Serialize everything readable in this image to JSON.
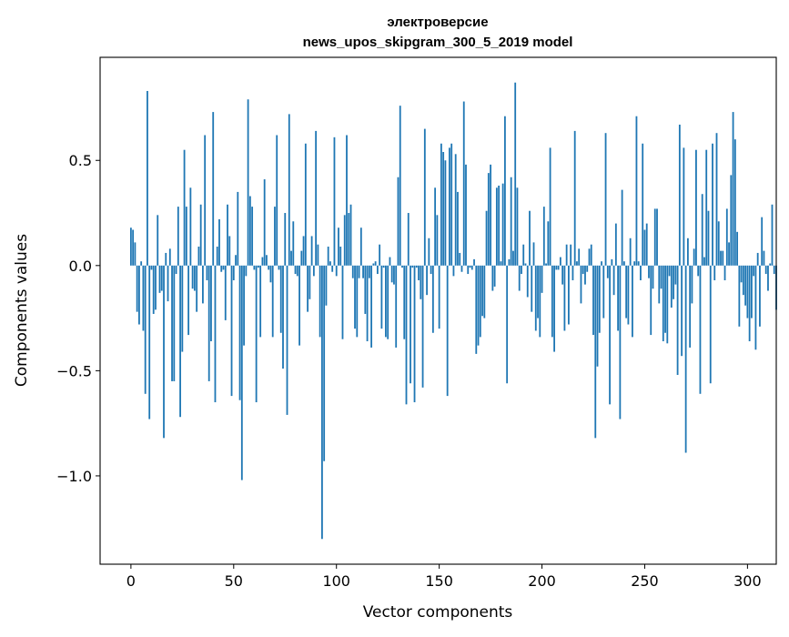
{
  "chart_data": {
    "type": "bar",
    "title_line1": "электроверсие",
    "title_line2": "news_upos_skipgram_300_5_2019 model",
    "xlabel": "Vector components",
    "ylabel": "Components values",
    "xlim": [
      -15,
      314
    ],
    "ylim": [
      -1.42,
      0.99
    ],
    "x_ticks": [
      0,
      50,
      100,
      150,
      200,
      250,
      300
    ],
    "x_tick_labels": [
      "0",
      "50",
      "100",
      "150",
      "200",
      "250",
      "300"
    ],
    "y_ticks": [
      0.5,
      0.0,
      -0.5,
      -1.0
    ],
    "y_tick_labels": [
      "0.5",
      "0.0",
      "−0.5",
      "−1.0"
    ],
    "bar_color": "#1f77b4",
    "grid": false,
    "values": [
      0.18,
      0.17,
      0.11,
      -0.22,
      -0.28,
      0.02,
      -0.31,
      -0.61,
      0.83,
      -0.73,
      -0.02,
      -0.23,
      -0.21,
      0.24,
      -0.13,
      -0.12,
      -0.82,
      0.06,
      -0.17,
      0.08,
      -0.55,
      -0.55,
      -0.04,
      0.28,
      -0.72,
      -0.41,
      0.55,
      0.28,
      -0.33,
      0.37,
      -0.11,
      -0.12,
      -0.22,
      0.09,
      0.29,
      -0.18,
      0.62,
      -0.07,
      -0.55,
      -0.36,
      0.73,
      -0.65,
      0.09,
      0.22,
      -0.03,
      -0.02,
      -0.26,
      0.29,
      0.14,
      -0.62,
      -0.07,
      0.05,
      0.35,
      -0.64,
      -1.02,
      -0.38,
      -0.05,
      0.79,
      0.33,
      0.28,
      -0.02,
      -0.65,
      -0.01,
      -0.34,
      0.04,
      0.41,
      0.05,
      -0.02,
      -0.08,
      -0.34,
      0.28,
      0.62,
      -0.02,
      -0.32,
      -0.49,
      0.25,
      -0.71,
      0.72,
      0.07,
      0.21,
      -0.04,
      -0.05,
      -0.38,
      0.07,
      0.14,
      0.58,
      -0.22,
      -0.16,
      0.14,
      -0.05,
      0.64,
      0.1,
      -0.34,
      -1.3,
      -0.93,
      -0.19,
      0.09,
      0.02,
      -0.03,
      0.61,
      -0.05,
      0.18,
      0.09,
      -0.35,
      0.24,
      0.62,
      0.25,
      0.29,
      -0.06,
      -0.3,
      -0.34,
      -0.06,
      0.18,
      -0.06,
      -0.23,
      -0.36,
      -0.06,
      -0.39,
      0.01,
      0.02,
      -0.04,
      0.1,
      -0.3,
      -0.01,
      -0.34,
      -0.35,
      0.04,
      -0.08,
      -0.09,
      -0.39,
      0.42,
      0.76,
      -0.01,
      -0.35,
      -0.66,
      0.25,
      -0.56,
      -0.01,
      -0.65,
      -0.01,
      -0.07,
      -0.16,
      -0.58,
      0.65,
      -0.14,
      0.13,
      -0.04,
      -0.32,
      0.37,
      0.24,
      -0.3,
      0.58,
      0.54,
      0.5,
      -0.62,
      0.56,
      0.58,
      -0.05,
      0.53,
      0.35,
      0.06,
      -0.03,
      0.78,
      0.48,
      -0.04,
      -0.01,
      -0.02,
      0.03,
      -0.42,
      -0.38,
      -0.34,
      -0.24,
      -0.25,
      0.26,
      0.44,
      0.48,
      -0.12,
      -0.1,
      0.37,
      0.38,
      0.02,
      0.39,
      0.71,
      -0.56,
      0.03,
      0.42,
      0.07,
      0.87,
      0.37,
      -0.12,
      -0.04,
      0.1,
      0.01,
      -0.15,
      0.26,
      -0.22,
      0.11,
      -0.31,
      -0.25,
      -0.34,
      -0.13,
      0.28,
      0.01,
      0.21,
      0.56,
      -0.34,
      -0.41,
      -0.02,
      -0.02,
      0.04,
      -0.09,
      -0.31,
      0.1,
      -0.28,
      0.1,
      -0.07,
      0.64,
      0.02,
      0.08,
      -0.18,
      -0.04,
      -0.09,
      -0.03,
      0.08,
      0.1,
      -0.33,
      -0.82,
      -0.48,
      -0.32,
      0.02,
      -0.25,
      0.63,
      -0.06,
      -0.66,
      0.03,
      -0.14,
      0.2,
      -0.31,
      -0.73,
      0.36,
      0.02,
      -0.25,
      -0.28,
      0.13,
      -0.34,
      0.02,
      0.71,
      0.02,
      -0.07,
      0.58,
      0.17,
      0.2,
      -0.06,
      -0.33,
      -0.11,
      0.27,
      0.27,
      -0.18,
      -0.11,
      -0.36,
      -0.32,
      -0.37,
      -0.05,
      -0.2,
      -0.16,
      -0.09,
      -0.52,
      0.67,
      -0.43,
      0.56,
      -0.89,
      0.13,
      -0.39,
      -0.18,
      0.08,
      0.55,
      -0.05,
      -0.61,
      0.34,
      0.04,
      0.55,
      0.26,
      -0.56,
      0.58,
      -0.07,
      0.63,
      0.21,
      0.07,
      0.07,
      -0.07,
      0.27,
      0.11,
      0.43,
      0.73,
      0.6,
      0.16,
      -0.29,
      -0.08,
      -0.14,
      -0.19,
      -0.25,
      -0.36,
      -0.25,
      -0.05,
      -0.4,
      0.06,
      -0.29,
      0.23,
      0.07,
      -0.04,
      -0.12,
      0.01,
      0.29,
      -0.04,
      -0.21
    ]
  }
}
